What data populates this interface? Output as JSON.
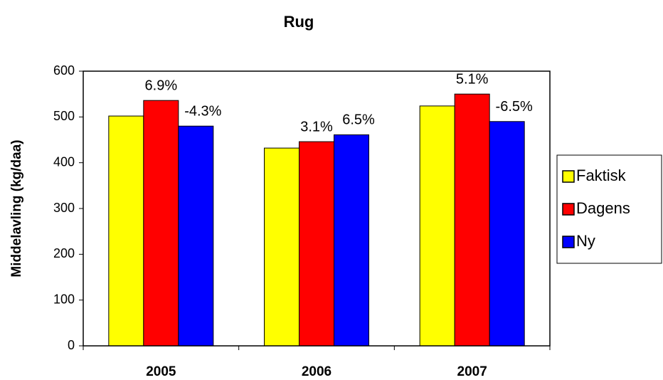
{
  "chart_data": {
    "type": "bar",
    "title": "Rug",
    "y_label": "Middelavling (kg/daa)",
    "categories": [
      "2005",
      "2006",
      "2007"
    ],
    "series": [
      {
        "name": "Faktisk",
        "color": "#ffff00",
        "values": [
          502,
          432,
          524
        ]
      },
      {
        "name": "Dagens",
        "color": "#ff0000",
        "values": [
          536,
          446,
          550
        ],
        "labels": [
          "6.9%",
          "3.1%",
          "5.1%"
        ]
      },
      {
        "name": "Ny",
        "color": "#0000ff",
        "values": [
          480,
          461,
          490
        ],
        "labels": [
          "-4.3%",
          "6.5%",
          "-6.5%"
        ]
      }
    ],
    "ylim": [
      0,
      600
    ],
    "yticks": [
      0,
      100,
      200,
      300,
      400,
      500,
      600
    ],
    "grid": false,
    "legend": "right"
  }
}
